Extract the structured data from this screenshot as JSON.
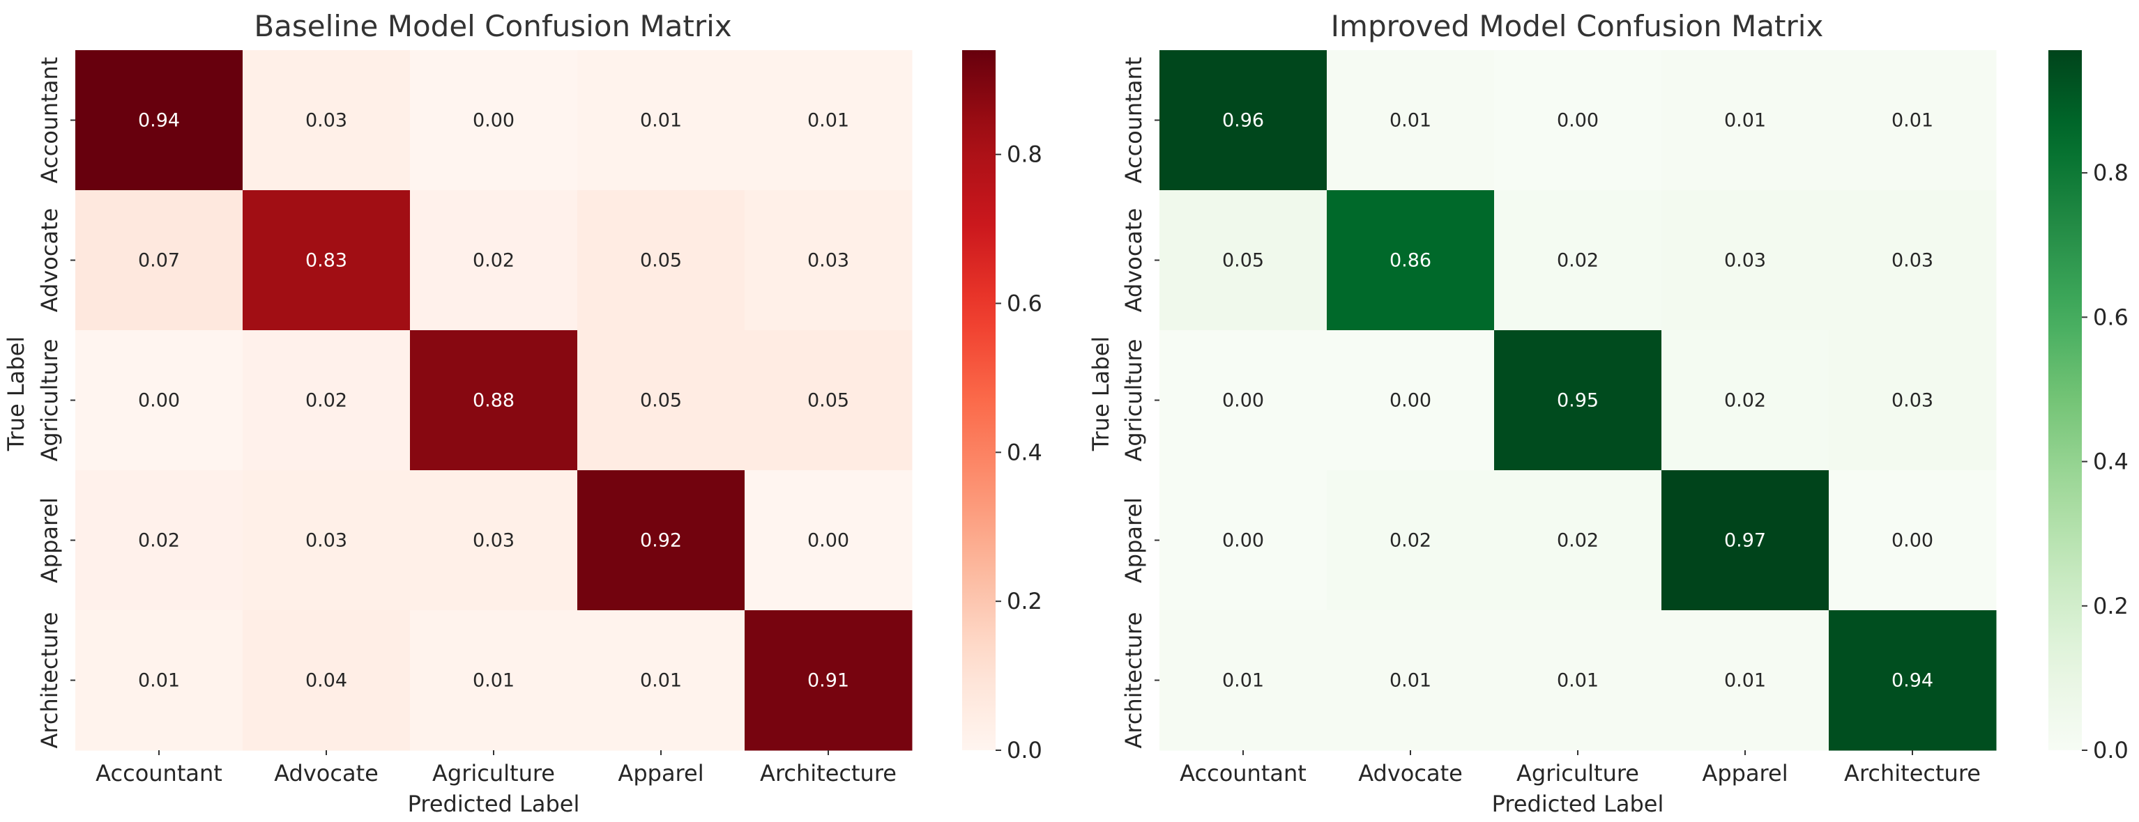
{
  "chart_data": [
    {
      "type": "heatmap",
      "title": "Baseline Model Confusion Matrix",
      "xlabel": "Predicted Label",
      "ylabel": "True Label",
      "x_categories": [
        "Accountant",
        "Advocate",
        "Agriculture",
        "Apparel",
        "Architecture"
      ],
      "y_categories": [
        "Accountant",
        "Advocate",
        "Agriculture",
        "Apparel",
        "Architecture"
      ],
      "values": [
        [
          0.94,
          0.03,
          0.0,
          0.01,
          0.01
        ],
        [
          0.07,
          0.83,
          0.02,
          0.05,
          0.03
        ],
        [
          0.0,
          0.02,
          0.88,
          0.05,
          0.05
        ],
        [
          0.02,
          0.03,
          0.03,
          0.92,
          0.0
        ],
        [
          0.01,
          0.04,
          0.01,
          0.01,
          0.91
        ]
      ],
      "colormap": "Reds",
      "color_range": [
        0,
        0.94
      ],
      "colorbar_ticks": [
        "0.0",
        "0.2",
        "0.4",
        "0.6",
        "0.8"
      ],
      "grid": false
    },
    {
      "type": "heatmap",
      "title": "Improved Model Confusion Matrix",
      "xlabel": "Predicted Label",
      "ylabel": "True Label",
      "x_categories": [
        "Accountant",
        "Advocate",
        "Agriculture",
        "Apparel",
        "Architecture"
      ],
      "y_categories": [
        "Accountant",
        "Advocate",
        "Agriculture",
        "Apparel",
        "Architecture"
      ],
      "values": [
        [
          0.96,
          0.01,
          0.0,
          0.01,
          0.01
        ],
        [
          0.05,
          0.86,
          0.02,
          0.03,
          0.03
        ],
        [
          0.0,
          0.0,
          0.95,
          0.02,
          0.03
        ],
        [
          0.0,
          0.02,
          0.02,
          0.97,
          0.0
        ],
        [
          0.01,
          0.01,
          0.01,
          0.01,
          0.94
        ]
      ],
      "colormap": "Greens",
      "color_range": [
        0,
        0.97
      ],
      "colorbar_ticks": [
        "0.0",
        "0.2",
        "0.4",
        "0.6",
        "0.8"
      ],
      "grid": false
    }
  ]
}
